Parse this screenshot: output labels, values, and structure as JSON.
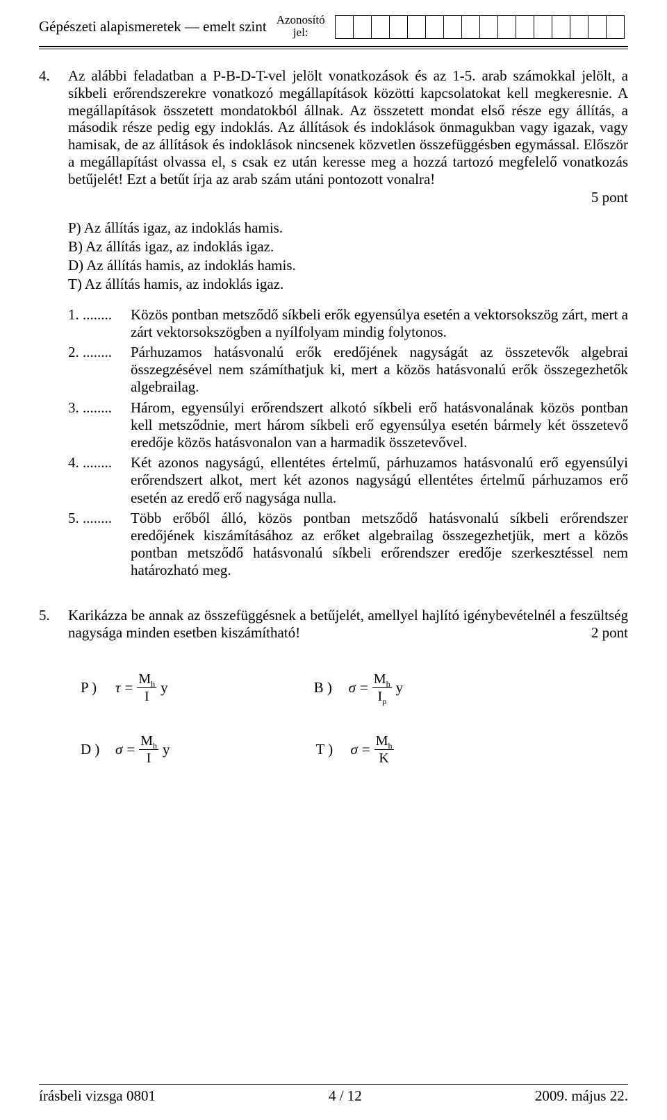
{
  "header": {
    "title": "Gépészeti alapismeretek — emelt szint",
    "id_label_line1": "Azonosító",
    "id_label_line2": "jel:",
    "id_box_count": 16
  },
  "task4": {
    "number": "4.",
    "text": "Az alábbi feladatban a P-B-D-T-vel jelölt vonatkozások és az 1-5. arab számokkal jelölt, a síkbeli erőrendszerekre vonatkozó megállapítások közötti kapcsolatokat kell megkeresnie. A megállapítások összetett mondatokból állnak. Az összetett mondat első része egy állítás, a második része pedig egy indoklás. Az állítások és indoklások önmagukban vagy igazak, vagy hamisak, de az állítások és indoklások nincsenek közvetlen összefüggésben egymással. Először a megállapítást olvassa el, s csak ez után keresse meg a hozzá tartozó megfelelő vonatkozás betűjelét! Ezt a betűt írja az arab szám utáni pontozott vonalra!",
    "points": "5 pont",
    "key": {
      "P": "P)  Az állítás igaz, az indoklás hamis.",
      "B": "B)  Az állítás igaz, az indoklás igaz.",
      "D": "D)  Az állítás hamis, az indoklás hamis.",
      "T": "T)  Az állítás hamis, az indoklás igaz."
    },
    "statements": [
      {
        "n": "1. ........",
        "t": "Közös pontban metsződő síkbeli erők egyensúlya esetén a vektorsokszög zárt, mert a zárt vektorsokszögben a nyílfolyam mindig folytonos."
      },
      {
        "n": "2. ........",
        "t": "Párhuzamos hatásvonalú erők eredőjének nagyságát az összetevők algebrai összegzésével nem számíthatjuk ki, mert a közös hatásvonalú erők összegezhetők algebrailag."
      },
      {
        "n": "3. ........",
        "t": "Három, egyensúlyi erőrendszert alkotó síkbeli erő hatásvonalának közös pontban kell metsződnie, mert három síkbeli erő egyensúlya esetén bármely két összetevő eredője közös hatásvonalon van a harmadik összetevővel."
      },
      {
        "n": "4. ........",
        "t": "Két azonos nagyságú, ellentétes értelmű, párhuzamos hatásvonalú erő egyensúlyi erőrendszert alkot, mert két azonos nagyságú ellentétes értelmű párhuzamos erő esetén az eredő erő nagysága nulla."
      },
      {
        "n": "5. ........",
        "t": "Több erőből álló, közös pontban metsződő hatásvonalú síkbeli erőrendszer eredőjének kiszámításához az erőket algebrailag összegezhetjük, mert a közös pontban metsződő hatásvonalú síkbeli erőrendszer eredője szerkesztéssel nem határozható meg."
      }
    ]
  },
  "task5": {
    "number": "5.",
    "text": "Karikázza be annak az összefüggésnek a betűjelét, amellyel hajlító igénybevételnél a feszültség nagysága minden esetben kiszámítható!",
    "points": "2 pont",
    "formulas": {
      "P": {
        "label": "P )",
        "sym": "τ",
        "num": "M",
        "num_sub": "h",
        "den": "I",
        "den_sub": "",
        "tail": "y"
      },
      "B": {
        "label": "B )",
        "sym": "σ",
        "num": "M",
        "num_sub": "h",
        "den": "I",
        "den_sub": "p",
        "tail": "y"
      },
      "D": {
        "label": "D )",
        "sym": "σ",
        "num": "M",
        "num_sub": "h",
        "den": "I",
        "den_sub": "",
        "tail": "y"
      },
      "T": {
        "label": "T )",
        "sym": "σ",
        "num": "M",
        "num_sub": "h",
        "den": "K",
        "den_sub": "",
        "tail": ""
      }
    }
  },
  "footer": {
    "left": "írásbeli vizsga 0801",
    "center": "4 / 12",
    "right": "2009. május 22."
  }
}
